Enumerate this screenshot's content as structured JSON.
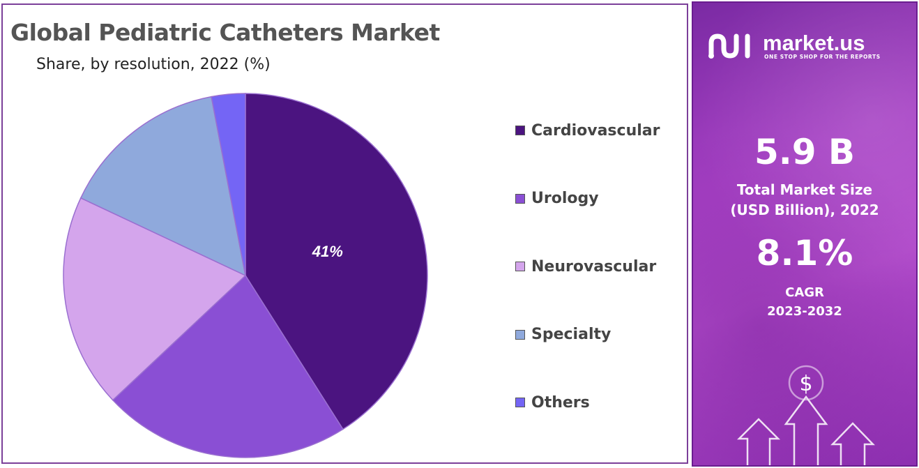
{
  "title": "Global Pediatric Catheters Market",
  "subtitle": "Share, by resolution, 2022 (%)",
  "chart_data": {
    "type": "pie",
    "title": "Global Pediatric Catheters Market",
    "subtitle": "Share, by resolution, 2022 (%)",
    "start_angle_deg": 0,
    "direction": "clockwise",
    "legend_position": "right",
    "slices": [
      {
        "label": "Cardiovascular",
        "value": 41,
        "color": "#4b1480",
        "data_label": "41%"
      },
      {
        "label": "Urology",
        "value": 22,
        "color": "#8a4fd4",
        "data_label": ""
      },
      {
        "label": "Neurovascular",
        "value": 19,
        "color": "#d4a5ec",
        "data_label": ""
      },
      {
        "label": "Specialty",
        "value": 15,
        "color": "#8fa9dc",
        "data_label": ""
      },
      {
        "label": "Others",
        "value": 3,
        "color": "#7465f5",
        "data_label": ""
      }
    ]
  },
  "info_panel": {
    "logo_name": "market.us",
    "logo_tagline": "ONE STOP SHOP FOR THE REPORTS",
    "market_size": "5.9 B",
    "market_size_label_line1": "Total Market Size",
    "market_size_label_line2": "(USD Billion), 2022",
    "cagr_value": "8.1%",
    "cagr_label": "CAGR",
    "cagr_period": "2023-2032",
    "currency_symbol": "$",
    "colors": {
      "panel_start": "#7a2aa3",
      "panel_mid": "#b44ccd",
      "text": "#ffffff"
    }
  }
}
